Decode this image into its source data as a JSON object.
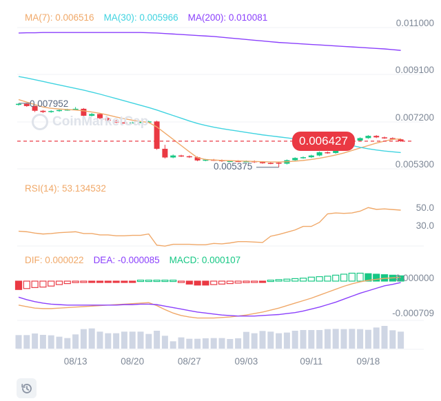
{
  "legend": {
    "ma7": "MA(7): 0.006516",
    "ma30": "MA(30): 0.005966",
    "ma200": "MA(200): 0.010081",
    "rsi": "RSI(14): 53.134532",
    "dif": "DIF: 0.000022",
    "dea": "DEA: -0.000085",
    "macd": "MACD: 0.000107"
  },
  "watermark": "CoinMarketCap",
  "current_price": "0.006427",
  "colors": {
    "up": "#16c784",
    "down": "#ea3943",
    "ma7": "#f0a868",
    "ma30": "#3fd3e0",
    "ma200": "#8a3ffc",
    "dif": "#f0a868",
    "dea": "#8a3ffc",
    "macd": "#16c784",
    "volume": "#cfd6e4",
    "axis_text": "#7d8796",
    "grid": "#eff2f5"
  },
  "icons": {
    "history": "history-icon"
  },
  "chart_data": [
    {
      "type": "candlestick",
      "panel": "price",
      "y_ticks": [
        "0.011000",
        "0.009100",
        "0.007200",
        "0.005300"
      ],
      "ylim": [
        0.0053,
        0.011
      ],
      "x_ticks": [
        "08/13",
        "08/20",
        "08/27",
        "09/03",
        "09/11",
        "09/18"
      ],
      "x_tick_index": [
        7,
        14,
        21,
        28,
        36,
        43
      ],
      "annotations": {
        "high": "0.007952",
        "high_index": 0,
        "low": "0.005375",
        "low_index": 32
      },
      "ohlc": [
        [
          0.0079,
          0.007952,
          0.00786,
          0.00793
        ],
        [
          0.00793,
          0.00796,
          0.00781,
          0.00784
        ],
        [
          0.00784,
          0.00787,
          0.0076,
          0.00765
        ],
        [
          0.00765,
          0.00768,
          0.00756,
          0.0076
        ],
        [
          0.0076,
          0.00767,
          0.00757,
          0.00764
        ],
        [
          0.00764,
          0.00771,
          0.00761,
          0.00768
        ],
        [
          0.00768,
          0.00773,
          0.00765,
          0.0077
        ],
        [
          0.0077,
          0.0078,
          0.00767,
          0.00773
        ],
        [
          0.00773,
          0.00776,
          0.0074,
          0.00745
        ],
        [
          0.00745,
          0.00756,
          0.00742,
          0.00752
        ],
        [
          0.00752,
          0.00755,
          0.00731,
          0.00735
        ],
        [
          0.00735,
          0.00738,
          0.00722,
          0.00725
        ],
        [
          0.00725,
          0.00728,
          0.00715,
          0.00718
        ],
        [
          0.00718,
          0.00721,
          0.00713,
          0.00716
        ],
        [
          0.00716,
          0.00721,
          0.00713,
          0.00718
        ],
        [
          0.00718,
          0.00723,
          0.00715,
          0.0072
        ],
        [
          0.0072,
          0.00725,
          0.00717,
          0.00722
        ],
        [
          0.00722,
          0.00725,
          0.00608,
          0.00612
        ],
        [
          0.00612,
          0.00628,
          0.00573,
          0.00577
        ],
        [
          0.00577,
          0.00589,
          0.00574,
          0.00585
        ],
        [
          0.00585,
          0.00588,
          0.00579,
          0.00582
        ],
        [
          0.00582,
          0.00585,
          0.00575,
          0.00578
        ],
        [
          0.00578,
          0.00581,
          0.00562,
          0.00565
        ],
        [
          0.00565,
          0.00571,
          0.00562,
          0.00568
        ],
        [
          0.00568,
          0.00571,
          0.00563,
          0.00566
        ],
        [
          0.00566,
          0.00569,
          0.00559,
          0.00562
        ],
        [
          0.00562,
          0.00566,
          0.00559,
          0.00563
        ],
        [
          0.00563,
          0.00566,
          0.00558,
          0.00561
        ],
        [
          0.00561,
          0.00565,
          0.00558,
          0.00562
        ],
        [
          0.00562,
          0.00565,
          0.00555,
          0.00558
        ],
        [
          0.00558,
          0.00561,
          0.00552,
          0.00555
        ],
        [
          0.00555,
          0.00558,
          0.0055,
          0.00553
        ],
        [
          0.00556,
          0.00559,
          0.005375,
          0.00552
        ],
        [
          0.00552,
          0.00569,
          0.00549,
          0.00566
        ],
        [
          0.00566,
          0.00578,
          0.00563,
          0.00575
        ],
        [
          0.00575,
          0.00581,
          0.00572,
          0.00578
        ],
        [
          0.00578,
          0.00588,
          0.00575,
          0.00585
        ],
        [
          0.00585,
          0.00601,
          0.00582,
          0.00598
        ],
        [
          0.00598,
          0.00601,
          0.00592,
          0.00595
        ],
        [
          0.00595,
          0.00615,
          0.00592,
          0.00612
        ],
        [
          0.00612,
          0.00631,
          0.00609,
          0.00628
        ],
        [
          0.00628,
          0.00648,
          0.00625,
          0.00645
        ],
        [
          0.00645,
          0.00658,
          0.00642,
          0.00655
        ],
        [
          0.00655,
          0.00667,
          0.00652,
          0.00664
        ],
        [
          0.00664,
          0.00667,
          0.00655,
          0.00658
        ],
        [
          0.00658,
          0.00661,
          0.00652,
          0.00655
        ],
        [
          0.00655,
          0.00658,
          0.00647,
          0.0065
        ],
        [
          0.0065,
          0.00653,
          0.0064,
          0.006427
        ]
      ],
      "series": [
        {
          "name": "MA(7)",
          "values": [
            0.0081,
            0.008,
            0.0079,
            0.0078,
            0.00775,
            0.00772,
            0.0077,
            0.00768,
            0.00765,
            0.0076,
            0.00755,
            0.00748,
            0.0074,
            0.00733,
            0.00727,
            0.00722,
            0.00718,
            0.007,
            0.00675,
            0.0065,
            0.00625,
            0.006,
            0.00576,
            0.00569,
            0.00567,
            0.00565,
            0.00564,
            0.00563,
            0.00562,
            0.00561,
            0.0056,
            0.00559,
            0.00559,
            0.0056,
            0.00562,
            0.00565,
            0.00569,
            0.00574,
            0.0058,
            0.00587,
            0.00595,
            0.00605,
            0.00615,
            0.00625,
            0.00635,
            0.00643,
            0.0065,
            0.006516
          ]
        },
        {
          "name": "MA(30)",
          "values": [
            0.00903,
            0.00897,
            0.0089,
            0.00883,
            0.00876,
            0.00869,
            0.00862,
            0.00855,
            0.00848,
            0.0084,
            0.00832,
            0.00823,
            0.00814,
            0.00805,
            0.00796,
            0.00787,
            0.00778,
            0.00768,
            0.00757,
            0.00746,
            0.00735,
            0.00724,
            0.00714,
            0.00706,
            0.00699,
            0.00693,
            0.00688,
            0.00683,
            0.00678,
            0.00673,
            0.00668,
            0.00664,
            0.0066,
            0.00656,
            0.00652,
            0.00649,
            0.00646,
            0.00643,
            0.0064,
            0.00636,
            0.0063,
            0.00625,
            0.00618,
            0.00612,
            0.00607,
            0.00603,
            0.006,
            0.005966
          ]
        },
        {
          "name": "MA(200)",
          "values": [
            0.01078,
            0.01079,
            0.01079,
            0.0108,
            0.0108,
            0.0108,
            0.0108,
            0.0108,
            0.0108,
            0.0108,
            0.0108,
            0.0108,
            0.0108,
            0.0108,
            0.0108,
            0.0108,
            0.01079,
            0.01078,
            0.01076,
            0.01074,
            0.01072,
            0.0107,
            0.01068,
            0.01066,
            0.01064,
            0.01061,
            0.01058,
            0.01055,
            0.01052,
            0.01049,
            0.01046,
            0.01043,
            0.0104,
            0.01038,
            0.01036,
            0.01034,
            0.01032,
            0.0103,
            0.01028,
            0.01026,
            0.01024,
            0.01022,
            0.0102,
            0.01018,
            0.01016,
            0.01014,
            0.01011,
            0.010081
          ]
        }
      ]
    },
    {
      "type": "line",
      "panel": "rsi",
      "y_ticks": [
        "50.0",
        "30.0"
      ],
      "series": [
        {
          "name": "RSI(14)",
          "values": [
            29.6,
            29,
            27.5,
            26.5,
            27,
            28,
            28.5,
            29,
            27,
            27,
            25.5,
            25.5,
            24.5,
            24.5,
            25,
            25,
            26.5,
            14,
            13,
            15,
            15,
            15,
            14.5,
            14.5,
            16,
            15.5,
            16.5,
            18,
            18,
            17.5,
            17,
            24,
            26,
            28.5,
            31,
            35,
            35,
            39.5,
            49,
            50,
            49.5,
            50,
            52,
            56,
            54,
            54.5,
            53.8,
            53.134532
          ]
        }
      ]
    },
    {
      "type": "bar+line",
      "panel": "macd",
      "y_ticks": [
        "0.000000",
        "-0.000709"
      ],
      "series": [
        {
          "name": "MACD",
          "values": [
            -0.00017,
            -0.00015,
            -0.00013,
            -0.00012,
            -0.0001,
            -7e-05,
            -5e-05,
            -3e-05,
            -2e-05,
            -2e-05,
            -2e-05,
            -2e-05,
            -2e-05,
            -2e-05,
            -2e-05,
            2e-05,
            2e-05,
            2e-05,
            2e-05,
            2e-05,
            -1e-05,
            -6e-05,
            -8e-05,
            -8e-05,
            -7e-05,
            -6e-05,
            -5e-05,
            -4e-05,
            -3e-05,
            -2e-05,
            -2e-05,
            2e-05,
            3e-05,
            4e-05,
            5e-05,
            6e-05,
            8e-05,
            9e-05,
            0.0001,
            0.00012,
            0.00014,
            0.00016,
            0.00016,
            0.00015,
            0.00014,
            0.00013,
            0.00012,
            0.000107
          ]
        },
        {
          "name": "DIF",
          "values": [
            -0.00054,
            -0.00057,
            -0.0006,
            -0.00061,
            -0.00061,
            -0.0006,
            -0.00059,
            -0.00058,
            -0.00057,
            -0.00056,
            -0.00055,
            -0.00054,
            -0.00053,
            -0.00052,
            -0.00051,
            -0.0005,
            -0.00049,
            -0.00055,
            -0.00063,
            -0.0007,
            -0.00075,
            -0.00078,
            -0.0008,
            -0.0008,
            -0.0008,
            -0.00079,
            -0.00078,
            -0.00076,
            -0.00074,
            -0.00071,
            -0.00068,
            -0.00064,
            -0.0006,
            -0.00055,
            -0.0005,
            -0.00045,
            -0.0004,
            -0.00034,
            -0.00028,
            -0.00022,
            -0.00016,
            -0.00011,
            -7e-05,
            -4e-05,
            -2e-05,
            0,
            1e-05,
            2.2e-05
          ]
        },
        {
          "name": "DEA",
          "values": [
            -0.00038,
            -0.00043,
            -0.00047,
            -0.0005,
            -0.00052,
            -0.00053,
            -0.00054,
            -0.00054,
            -0.00054,
            -0.00054,
            -0.00054,
            -0.00054,
            -0.00054,
            -0.00053,
            -0.00053,
            -0.00052,
            -0.00052,
            -0.00053,
            -0.00056,
            -0.00059,
            -0.00062,
            -0.00065,
            -0.00068,
            -0.0007,
            -0.00072,
            -0.00074,
            -0.00075,
            -0.00076,
            -0.00076,
            -0.00076,
            -0.00075,
            -0.00074,
            -0.00073,
            -0.00071,
            -0.00069,
            -0.00066,
            -0.00062,
            -0.00058,
            -0.00053,
            -0.00048,
            -0.00042,
            -0.00036,
            -0.0003,
            -0.00025,
            -0.0002,
            -0.00015,
            -0.00012,
            -8.5e-05
          ]
        }
      ]
    },
    {
      "type": "bar",
      "panel": "volume",
      "values_relative": [
        59,
        59,
        66,
        60,
        58,
        52,
        46,
        62,
        85,
        88,
        74,
        67,
        67,
        74,
        74,
        74,
        64,
        78,
        56,
        32,
        49,
        43,
        43,
        45,
        46,
        46,
        42,
        45,
        73,
        67,
        77,
        74,
        67,
        70,
        78,
        81,
        81,
        81,
        85,
        86,
        85,
        86,
        85,
        82,
        92,
        99,
        80,
        74
      ]
    }
  ]
}
